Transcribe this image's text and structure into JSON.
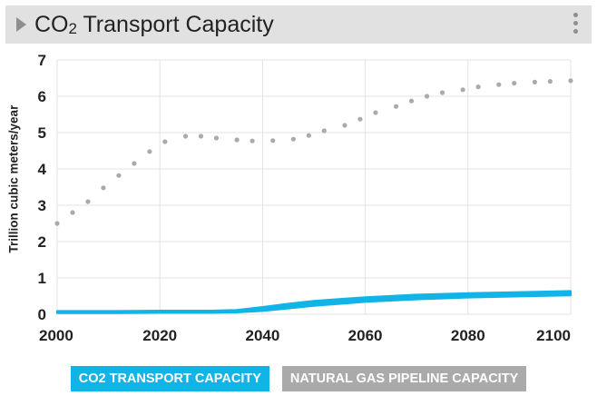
{
  "header": {
    "title_main": "CO",
    "title_sub": "2",
    "title_rest": " Transport Capacity"
  },
  "chart_data": {
    "type": "line",
    "title": "CO2 Transport Capacity",
    "xlabel": "",
    "ylabel": "Trillion cubic meters/year",
    "xlim": [
      2000,
      2100
    ],
    "ylim": [
      0,
      7
    ],
    "xticks": [
      2000,
      2020,
      2040,
      2060,
      2080,
      2100
    ],
    "yticks": [
      0,
      1,
      2,
      3,
      4,
      5,
      6,
      7
    ],
    "grid": true,
    "legend_position": "bottom",
    "series": [
      {
        "name": "CO2 TRANSPORT CAPACITY",
        "color": "#12b4e8",
        "style": "band",
        "x": [
          2000,
          2010,
          2020,
          2030,
          2035,
          2040,
          2045,
          2050,
          2060,
          2070,
          2080,
          2090,
          2100
        ],
        "lower": [
          0.03,
          0.03,
          0.04,
          0.04,
          0.05,
          0.09,
          0.16,
          0.23,
          0.34,
          0.41,
          0.46,
          0.49,
          0.52
        ],
        "upper": [
          0.09,
          0.09,
          0.1,
          0.1,
          0.12,
          0.2,
          0.29,
          0.37,
          0.47,
          0.54,
          0.58,
          0.61,
          0.64
        ]
      },
      {
        "name": "NATURAL GAS PIPELINE CAPACITY",
        "color": "#aaaaaa",
        "style": "dotted",
        "x": [
          2000,
          2003,
          2006,
          2009,
          2012,
          2015,
          2018,
          2021,
          2025,
          2028,
          2031,
          2035,
          2038,
          2042,
          2046,
          2049,
          2052,
          2056,
          2059,
          2062,
          2066,
          2069,
          2072,
          2075,
          2079,
          2082,
          2086,
          2089,
          2093,
          2096,
          2100
        ],
        "y": [
          2.5,
          2.8,
          3.1,
          3.48,
          3.82,
          4.15,
          4.48,
          4.75,
          4.9,
          4.9,
          4.85,
          4.8,
          4.77,
          4.78,
          4.82,
          4.92,
          5.05,
          5.2,
          5.37,
          5.55,
          5.72,
          5.87,
          6.0,
          6.1,
          6.18,
          6.26,
          6.32,
          6.36,
          6.39,
          6.41,
          6.43
        ]
      }
    ]
  }
}
